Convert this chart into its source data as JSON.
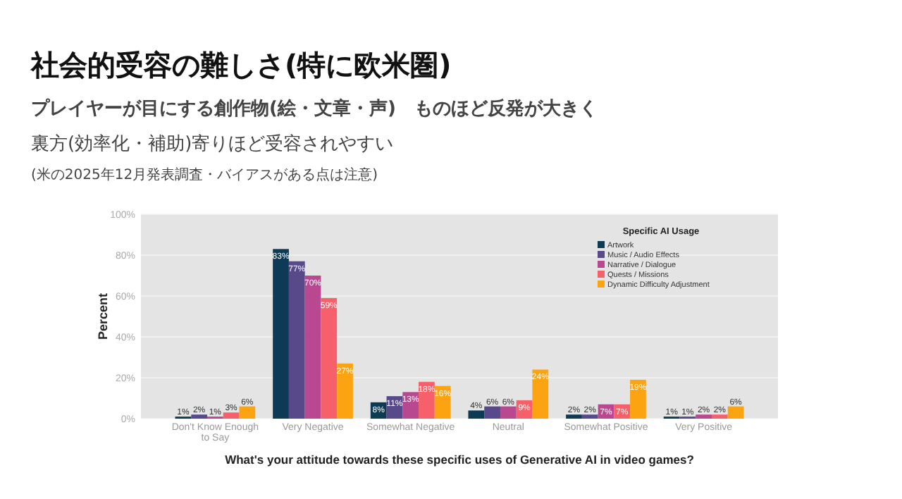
{
  "chart_data": {
    "type": "bar",
    "title": "社会的受容の難しさ(特に欧米圏)",
    "subtitle": "プレイヤーが目にする創作物(絵・文章・声)　ものほど反発が大きく",
    "annotations": [
      "裏方(効率化・補助)寄りほど受容されやすい",
      "(米の2025年12月発表調査・バイアスがある点は注意)"
    ],
    "xlabel": "What's your attitude towards these specific uses of Generative AI in video games?",
    "ylabel": "Percent",
    "legend_title": "Specific AI Usage",
    "categories": [
      "Don't Know Enough to Say",
      "Very Negative",
      "Somewhat Negative",
      "Neutral",
      "Somewhat Positive",
      "Very Positive"
    ],
    "series": [
      {
        "name": "Artwork",
        "color": "#0d3b55",
        "values": [
          1,
          83,
          8,
          4,
          2,
          1
        ],
        "value_labels": [
          "1%",
          "83%",
          "8%",
          "4%",
          "2%",
          "1%"
        ]
      },
      {
        "name": "Music / Audio Effects",
        "color": "#584a8a",
        "values": [
          2,
          77,
          11,
          6,
          2,
          1
        ],
        "value_labels": [
          "2%",
          "77%",
          "11%",
          "6%",
          "2%",
          "1%"
        ]
      },
      {
        "name": "Narrative / Dialogue",
        "color": "#b8488f",
        "values": [
          1,
          70,
          13,
          6,
          7,
          2
        ],
        "value_labels": [
          "1%",
          "70%",
          "13%",
          "6%",
          "7%",
          "2%"
        ]
      },
      {
        "name": "Quests / Missions",
        "color": "#f5606a",
        "values": [
          3,
          59,
          18,
          9,
          7,
          2
        ],
        "value_labels": [
          "3%",
          "59%",
          "18%",
          "9%",
          "7%",
          "2%"
        ]
      },
      {
        "name": "Dynamic Difficulty Adjustment",
        "color": "#fca311",
        "values": [
          6,
          27,
          16,
          24,
          19,
          6
        ],
        "value_labels": [
          "6%",
          "27%",
          "16%",
          "24%",
          "19%",
          "6%"
        ]
      }
    ],
    "ylim": [
      0,
      100
    ],
    "yticks": [
      {
        "value": 0,
        "label": "0%"
      },
      {
        "value": 20,
        "label": "20%"
      },
      {
        "value": 40,
        "label": "40%"
      },
      {
        "value": 60,
        "label": "60%"
      },
      {
        "value": 80,
        "label": "80%"
      },
      {
        "value": 100,
        "label": "100%"
      }
    ],
    "grid": "y",
    "legend": "top right"
  }
}
